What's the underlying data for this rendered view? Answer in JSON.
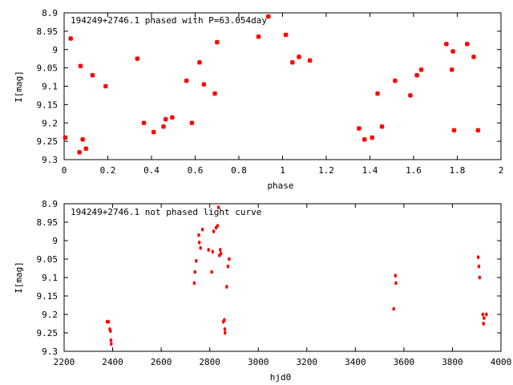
{
  "chart_data": [
    {
      "type": "scatter",
      "title": "194249+2746.1 phased with P=63.054day",
      "xlabel": "phase",
      "ylabel": "I[mag]",
      "xlim": [
        0,
        2
      ],
      "ylim": [
        9.3,
        8.9
      ],
      "y_inverted": true,
      "grid": false,
      "color": "#ff0000",
      "xticks": [
        "0",
        "0.2",
        "0.4",
        "0.6",
        "0.8",
        "1",
        "1.2",
        "1.4",
        "1.6",
        "1.8",
        "2"
      ],
      "yticks": [
        "8.9",
        "8.95",
        "9",
        "9.05",
        "9.1",
        "9.15",
        "9.2",
        "9.25",
        "9.3"
      ],
      "xtick_values": [
        0,
        0.2,
        0.4,
        0.6,
        0.8,
        1.0,
        1.2,
        1.4,
        1.6,
        1.8,
        2.0
      ],
      "ytick_values": [
        8.9,
        8.95,
        9.0,
        9.05,
        9.1,
        9.15,
        9.2,
        9.25,
        9.3
      ],
      "points": [
        [
          0.005,
          9.24
        ],
        [
          0.03,
          8.97
        ],
        [
          0.075,
          9.045
        ],
        [
          0.07,
          9.28
        ],
        [
          0.085,
          9.245
        ],
        [
          0.1,
          9.27
        ],
        [
          0.13,
          9.07
        ],
        [
          0.19,
          9.1
        ],
        [
          0.335,
          9.025
        ],
        [
          0.365,
          9.2
        ],
        [
          0.41,
          9.225
        ],
        [
          0.455,
          9.21
        ],
        [
          0.465,
          9.19
        ],
        [
          0.495,
          9.185
        ],
        [
          0.56,
          9.085
        ],
        [
          0.585,
          9.2
        ],
        [
          0.62,
          9.035
        ],
        [
          0.64,
          9.095
        ],
        [
          0.69,
          9.12
        ],
        [
          0.7,
          8.98
        ],
        [
          0.89,
          8.965
        ],
        [
          0.935,
          8.91
        ],
        [
          1.015,
          8.96
        ],
        [
          1.045,
          9.035
        ],
        [
          1.075,
          9.02
        ],
        [
          1.125,
          9.03
        ],
        [
          1.35,
          9.215
        ],
        [
          1.375,
          9.245
        ],
        [
          1.41,
          9.24
        ],
        [
          1.435,
          9.12
        ],
        [
          1.455,
          9.21
        ],
        [
          1.515,
          9.085
        ],
        [
          1.585,
          9.125
        ],
        [
          1.615,
          9.07
        ],
        [
          1.635,
          9.055
        ],
        [
          1.75,
          8.985
        ],
        [
          1.775,
          9.055
        ],
        [
          1.78,
          9.005
        ],
        [
          1.785,
          9.22
        ],
        [
          1.845,
          8.985
        ],
        [
          1.875,
          9.02
        ],
        [
          1.895,
          9.22
        ]
      ]
    },
    {
      "type": "scatter",
      "title": "194249+2746.1 not phased light curve",
      "xlabel": "hjd0",
      "ylabel": "I[mag]",
      "xlim": [
        2200,
        4000
      ],
      "ylim": [
        9.3,
        8.9
      ],
      "y_inverted": true,
      "grid": false,
      "color": "#ff0000",
      "xticks": [
        "2200",
        "2400",
        "2600",
        "2800",
        "3000",
        "3200",
        "3400",
        "3600",
        "3800",
        "4000"
      ],
      "yticks": [
        "8.9",
        "8.95",
        "9",
        "9.05",
        "9.1",
        "9.15",
        "9.2",
        "9.25",
        "9.3"
      ],
      "xtick_values": [
        2200,
        2400,
        2600,
        2800,
        3000,
        3200,
        3400,
        3600,
        3800,
        4000
      ],
      "ytick_values": [
        8.9,
        8.95,
        9.0,
        9.05,
        9.1,
        9.15,
        9.2,
        9.25,
        9.3
      ],
      "points": [
        [
          2377,
          9.22
        ],
        [
          2383,
          9.22
        ],
        [
          2388,
          9.24
        ],
        [
          2391,
          9.245
        ],
        [
          2393,
          9.27
        ],
        [
          2394,
          9.28
        ],
        [
          2736,
          9.115
        ],
        [
          2739,
          9.085
        ],
        [
          2744,
          9.055
        ],
        [
          2755,
          8.985
        ],
        [
          2757,
          9.005
        ],
        [
          2762,
          9.02
        ],
        [
          2770,
          8.97
        ],
        [
          2795,
          9.025
        ],
        [
          2808,
          9.085
        ],
        [
          2812,
          9.03
        ],
        [
          2816,
          8.975
        ],
        [
          2826,
          8.965
        ],
        [
          2832,
          8.96
        ],
        [
          2836,
          8.91
        ],
        [
          2840,
          9.04
        ],
        [
          2843,
          9.025
        ],
        [
          2846,
          9.035
        ],
        [
          2856,
          9.22
        ],
        [
          2860,
          9.215
        ],
        [
          2862,
          9.24
        ],
        [
          2863,
          9.25
        ],
        [
          2870,
          9.125
        ],
        [
          2875,
          9.07
        ],
        [
          2880,
          9.05
        ],
        [
          3558,
          9.185
        ],
        [
          3565,
          9.095
        ],
        [
          3567,
          9.115
        ],
        [
          3906,
          9.045
        ],
        [
          3909,
          9.07
        ],
        [
          3912,
          9.1
        ],
        [
          3925,
          9.2
        ],
        [
          3928,
          9.225
        ],
        [
          3930,
          9.21
        ],
        [
          3940,
          9.2
        ]
      ]
    }
  ]
}
